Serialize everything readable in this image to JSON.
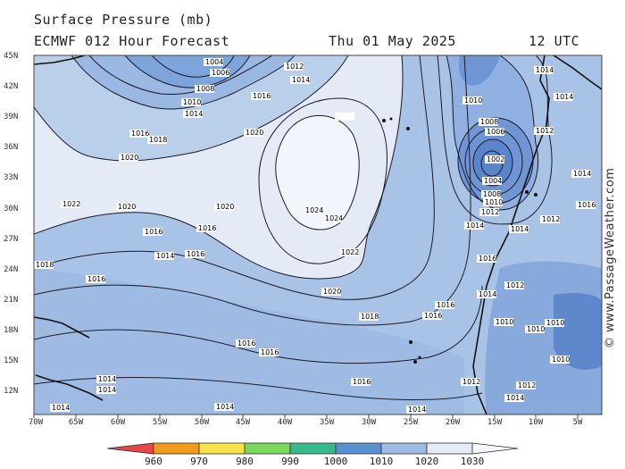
{
  "header": {
    "title": "Surface Pressure (mb)",
    "model": "ECMWF 012 Hour Forecast",
    "date": "Thu 01 May 2025",
    "time": "12 UTC"
  },
  "copyright": "© www.PassageWeather.com",
  "lat_labels": [
    "45N",
    "42N",
    "39N",
    "36N",
    "33N",
    "30N",
    "27N",
    "24N",
    "21N",
    "18N",
    "15N",
    "12N"
  ],
  "lon_labels": [
    "70W",
    "65W",
    "60W",
    "55W",
    "50W",
    "45W",
    "40W",
    "35W",
    "30W",
    "25W",
    "20W",
    "15W",
    "10W",
    "5W"
  ],
  "colorbar": {
    "labels": [
      "960",
      "970",
      "980",
      "990",
      "1000",
      "1010",
      "1020",
      "1030"
    ],
    "colors": [
      "#e8474a",
      "#f39c1b",
      "#f7e24a",
      "#7ad85e",
      "#38b98c",
      "#5a8fd0",
      "#9dbde3",
      "#e4ecf7"
    ]
  },
  "isobar_labels": [
    {
      "text": "1004"
    },
    {
      "text": "1006"
    },
    {
      "text": "1008"
    },
    {
      "text": "1010"
    },
    {
      "text": "1012"
    },
    {
      "text": "1014"
    },
    {
      "text": "1016"
    },
    {
      "text": "1018"
    },
    {
      "text": "1020"
    },
    {
      "text": "1022"
    },
    {
      "text": "1024"
    },
    {
      "text": "1002"
    }
  ],
  "map_labels": {
    "high_center": "1024",
    "high_center2": "1024",
    "low_center": "1002",
    "label_1004": "1004",
    "label_1006": "1006",
    "label_1008": "1008",
    "label_1010": "1010",
    "label_1012": "1012",
    "label_1014": "1014",
    "label_1016": "1016",
    "label_1018": "1018",
    "label_1020": "1020",
    "label_1022": "1022"
  }
}
